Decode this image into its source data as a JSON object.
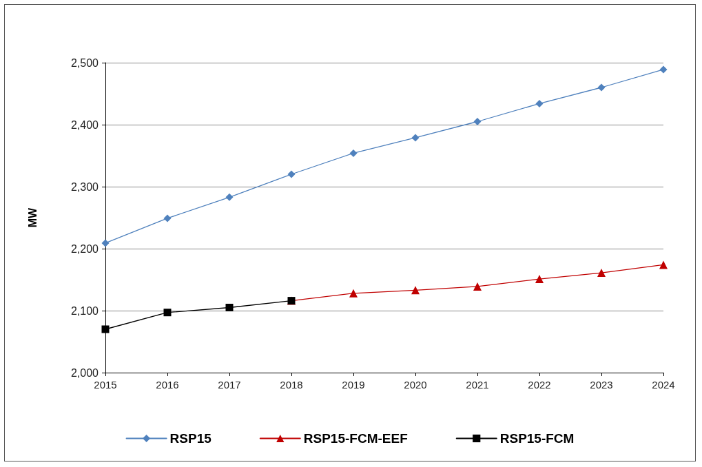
{
  "chart_data": {
    "type": "line",
    "ylabel": "MW",
    "categories": [
      "2015",
      "2016",
      "2017",
      "2018",
      "2019",
      "2020",
      "2021",
      "2022",
      "2023",
      "2024"
    ],
    "series": [
      {
        "name": "RSP15",
        "color": "#4f81bd",
        "marker": "diamond",
        "values": [
          2209,
          2249,
          2283,
          2320,
          2354,
          2379,
          2405,
          2434,
          2460,
          2489
        ]
      },
      {
        "name": "RSP15-FCM-EEF",
        "color": "#c00000",
        "marker": "triangle",
        "values": [
          null,
          null,
          null,
          2116,
          2128,
          2133,
          2139,
          2151,
          2161,
          2174
        ]
      },
      {
        "name": "RSP15-FCM",
        "color": "#000000",
        "marker": "square",
        "values": [
          2070,
          2097,
          2105,
          2116,
          null,
          null,
          null,
          null,
          null,
          null
        ]
      }
    ],
    "ylim": [
      2000,
      2500
    ],
    "yticks": [
      {
        "value": 2000,
        "label": "2,000"
      },
      {
        "value": 2100,
        "label": "2,100"
      },
      {
        "value": 2200,
        "label": "2,200"
      },
      {
        "value": 2300,
        "label": "2,300"
      },
      {
        "value": 2400,
        "label": "2,400"
      },
      {
        "value": 2500,
        "label": "2,500"
      }
    ],
    "grid": "y",
    "legend": "bottom",
    "line_style": "solid"
  }
}
